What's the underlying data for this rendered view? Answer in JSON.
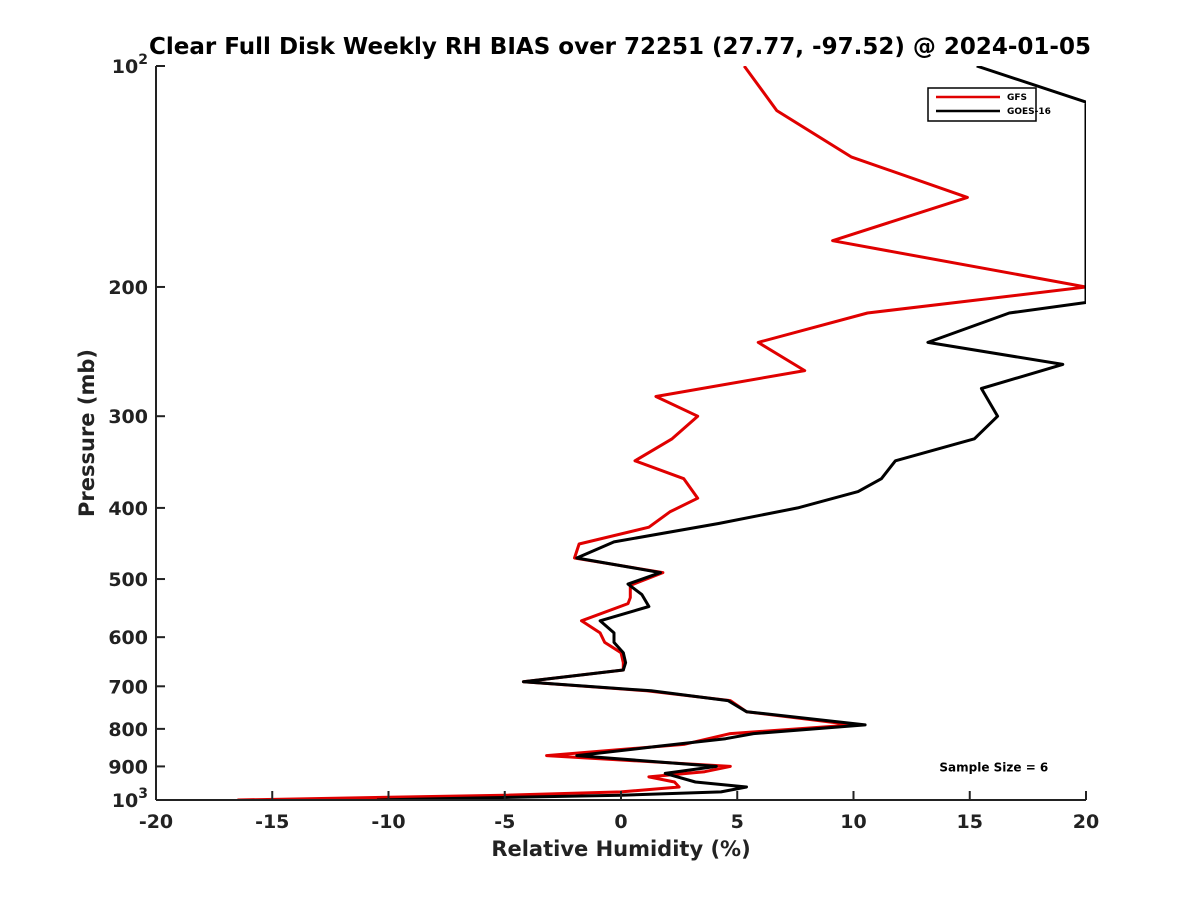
{
  "chart_data": {
    "type": "line",
    "title": "Clear Full Disk Weekly RH BIAS over 72251 (27.77, -97.52) @ 2024-01-05",
    "xlabel": "Relative Humidity (%)",
    "ylabel": "Pressure (mb)",
    "xlim": [
      -20,
      20
    ],
    "ylim": [
      100,
      1000
    ],
    "y_scale": "log",
    "y_reversed": true,
    "grid": false,
    "legend_position": "top-right",
    "x_ticks": [
      "-20",
      "-15",
      "-10",
      "-5",
      "0",
      "5",
      "10",
      "15",
      "20"
    ],
    "y_ticks": [
      {
        "value": 100,
        "base": "10",
        "exp": "2"
      },
      {
        "value": 200,
        "label": "200"
      },
      {
        "value": 300,
        "label": "300"
      },
      {
        "value": 400,
        "label": "400"
      },
      {
        "value": 500,
        "label": "500"
      },
      {
        "value": 600,
        "label": "600"
      },
      {
        "value": 700,
        "label": "700"
      },
      {
        "value": 800,
        "label": "800"
      },
      {
        "value": 900,
        "label": "900"
      },
      {
        "value": 1000,
        "base": "10",
        "exp": "3"
      }
    ],
    "series": [
      {
        "name": "GFS",
        "color": "#e00000",
        "points": [
          [
            5.3,
            100
          ],
          [
            6.7,
            115
          ],
          [
            9.9,
            133
          ],
          [
            14.9,
            151
          ],
          [
            9.1,
            173
          ],
          [
            20.0,
            200
          ],
          [
            10.6,
            217
          ],
          [
            5.9,
            238
          ],
          [
            7.9,
            260
          ],
          [
            1.5,
            282
          ],
          [
            3.3,
            300
          ],
          [
            2.2,
            322
          ],
          [
            0.6,
            345
          ],
          [
            2.7,
            365
          ],
          [
            3.3,
            388
          ],
          [
            2.1,
            405
          ],
          [
            1.2,
            425
          ],
          [
            -1.8,
            448
          ],
          [
            -2.0,
            468
          ],
          [
            1.8,
            490
          ],
          [
            0.4,
            510
          ],
          [
            0.4,
            530
          ],
          [
            0.3,
            540
          ],
          [
            -1.7,
            570
          ],
          [
            -0.9,
            592
          ],
          [
            -0.7,
            610
          ],
          [
            0.0,
            630
          ],
          [
            0.1,
            650
          ],
          [
            0.1,
            665
          ],
          [
            -4.2,
            690
          ],
          [
            1.1,
            710
          ],
          [
            4.7,
            732
          ],
          [
            5.4,
            758
          ],
          [
            10.0,
            790
          ],
          [
            4.7,
            812
          ],
          [
            2.7,
            840
          ],
          [
            -3.2,
            870
          ],
          [
            4.7,
            900
          ],
          [
            3.6,
            915
          ],
          [
            1.2,
            930
          ],
          [
            2.3,
            945
          ],
          [
            2.5,
            960
          ],
          [
            0.0,
            975
          ],
          [
            -5.0,
            985
          ],
          [
            -16.5,
            1000
          ]
        ]
      },
      {
        "name": "GOES-16",
        "color": "#000000",
        "points": [
          [
            15.3,
            100
          ],
          [
            20.0,
            112
          ],
          [
            20.0,
            210
          ],
          [
            16.7,
            217
          ],
          [
            13.2,
            238
          ],
          [
            19.0,
            255
          ],
          [
            15.5,
            275
          ],
          [
            16.2,
            300
          ],
          [
            15.2,
            322
          ],
          [
            11.8,
            345
          ],
          [
            11.2,
            365
          ],
          [
            10.2,
            380
          ],
          [
            7.6,
            400
          ],
          [
            4.2,
            420
          ],
          [
            -0.3,
            445
          ],
          [
            -1.9,
            468
          ],
          [
            1.7,
            490
          ],
          [
            0.3,
            508
          ],
          [
            0.9,
            525
          ],
          [
            1.2,
            545
          ],
          [
            -0.9,
            570
          ],
          [
            -0.3,
            592
          ],
          [
            -0.3,
            610
          ],
          [
            0.1,
            630
          ],
          [
            0.2,
            650
          ],
          [
            0.1,
            665
          ],
          [
            -4.2,
            690
          ],
          [
            1.3,
            710
          ],
          [
            4.6,
            732
          ],
          [
            5.4,
            758
          ],
          [
            10.5,
            790
          ],
          [
            5.7,
            812
          ],
          [
            4.5,
            825
          ],
          [
            1.6,
            845
          ],
          [
            -1.9,
            870
          ],
          [
            4.1,
            900
          ],
          [
            1.9,
            920
          ],
          [
            3.2,
            945
          ],
          [
            5.4,
            960
          ],
          [
            4.3,
            975
          ],
          [
            0.0,
            985
          ],
          [
            -10.5,
            1000
          ]
        ]
      }
    ],
    "annotations": [
      {
        "text": "Sample Size = 6",
        "x": 15.5,
        "y": 900
      }
    ]
  }
}
